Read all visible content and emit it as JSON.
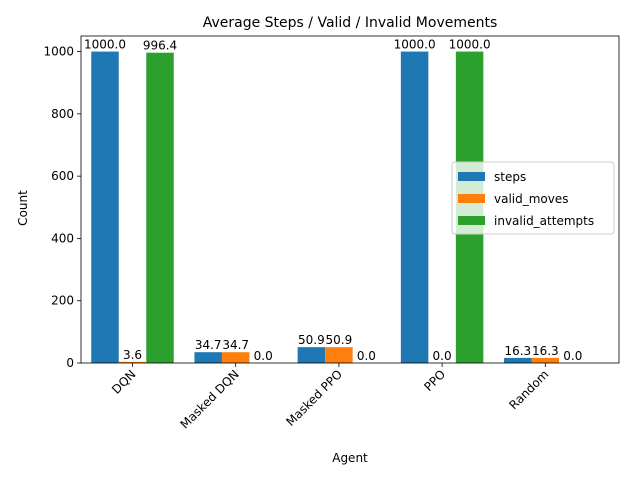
{
  "chart_data": {
    "type": "bar",
    "title": "Average Steps / Valid / Invalid Movements",
    "xlabel": "Agent",
    "ylabel": "Count",
    "categories": [
      "DQN",
      "Masked DQN",
      "Masked PPO",
      "PPO",
      "Random"
    ],
    "series": [
      {
        "name": "steps",
        "values": [
          1000.0,
          34.7,
          50.9,
          1000.0,
          16.3
        ],
        "labels": [
          "1000.0",
          "34.7",
          "50.9",
          "1000.0",
          "16.3"
        ]
      },
      {
        "name": "valid_moves",
        "values": [
          3.6,
          34.7,
          50.9,
          0.0,
          16.3
        ],
        "labels": [
          "3.6",
          "34.7",
          "50.9",
          "0.0",
          "16.3"
        ]
      },
      {
        "name": "invalid_attempts",
        "values": [
          996.4,
          0.0,
          0.0,
          1000.0,
          0.0
        ],
        "labels": [
          "996.4",
          "0.0",
          "0.0",
          "1000.0",
          "0.0"
        ]
      }
    ],
    "ylim": [
      0,
      1050
    ],
    "yticks": [
      0,
      200,
      400,
      600,
      800,
      1000
    ],
    "grid": false,
    "legend_position": "center-right",
    "colors": [
      "#1f77b4",
      "#ff7f0e",
      "#2ca02c"
    ]
  }
}
